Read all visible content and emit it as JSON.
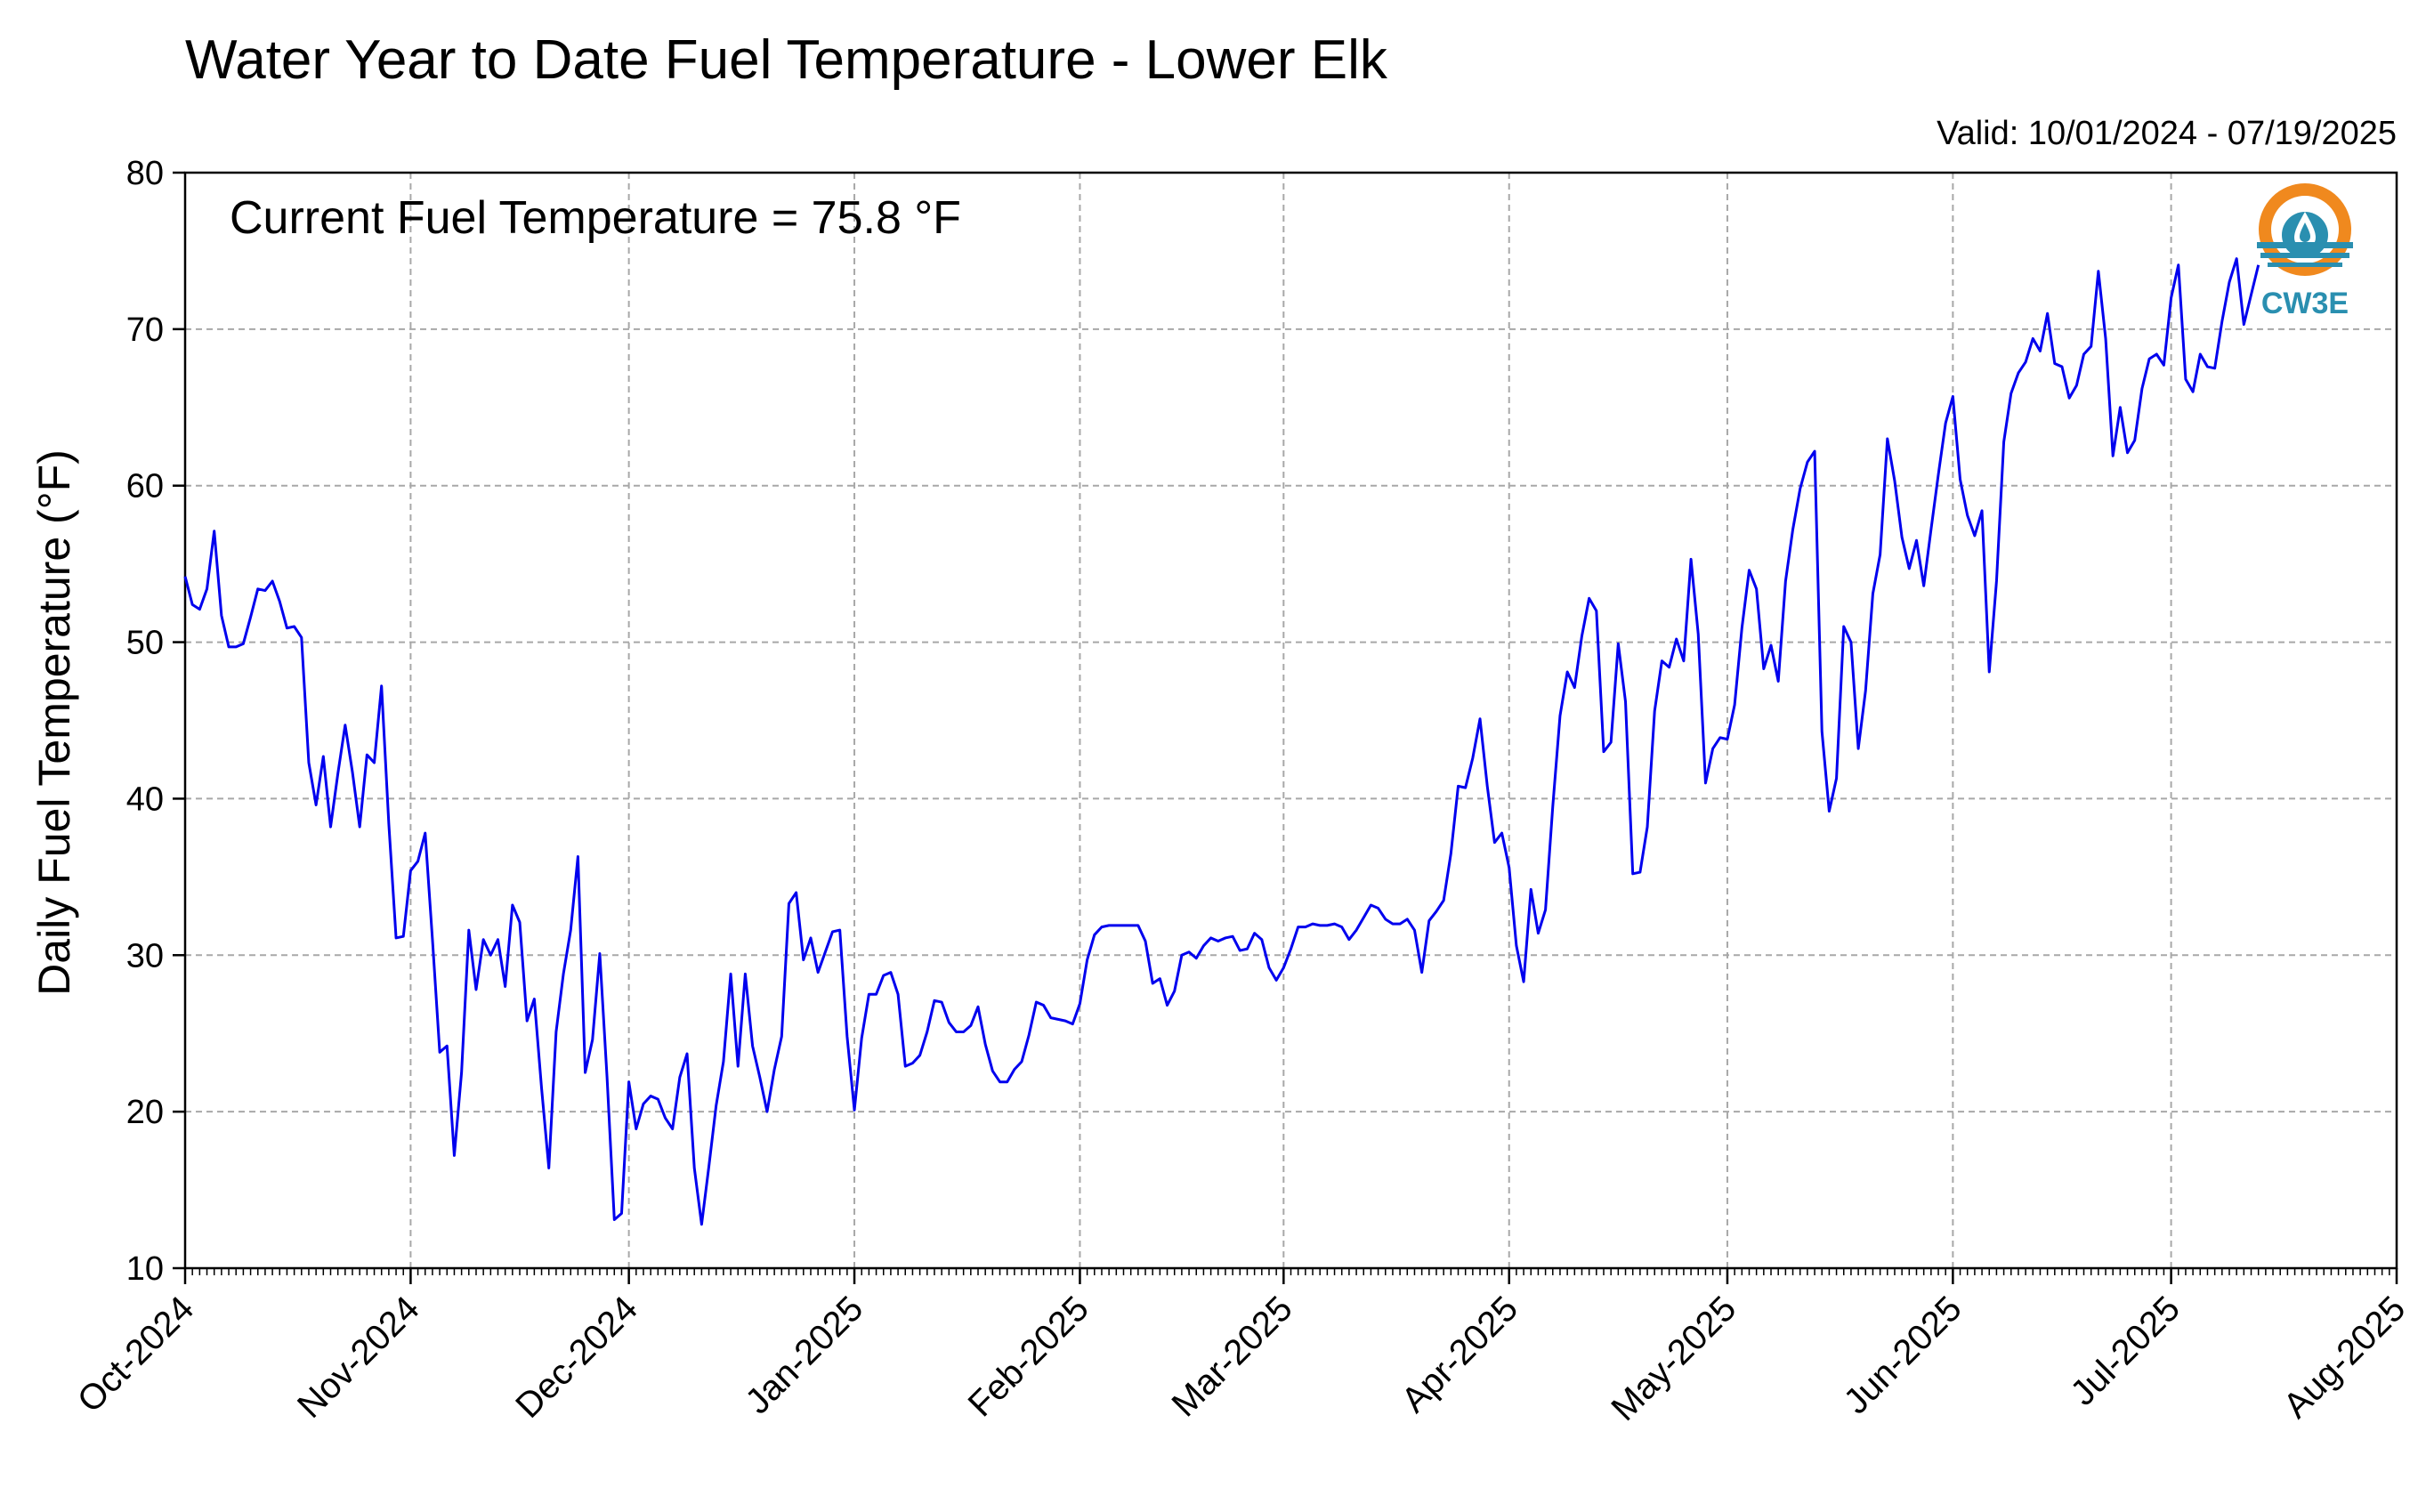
{
  "chart_data": {
    "type": "line",
    "title": "Water Year to Date Fuel Temperature - Lower Elk",
    "valid_text": "Valid: 10/01/2024 - 07/19/2025",
    "current_text": "Current Fuel Temperature = 75.8 °F",
    "ylabel": "Daily Fuel Temperature (°F)",
    "xlabel": "",
    "ylim": [
      10,
      80
    ],
    "yticks": [
      10,
      20,
      30,
      40,
      50,
      60,
      70,
      80
    ],
    "xlim": [
      "2024-10-01",
      "2025-08-01"
    ],
    "xtick_labels": [
      "Oct-2024",
      "Nov-2024",
      "Dec-2024",
      "Jan-2025",
      "Feb-2025",
      "Mar-2025",
      "Apr-2025",
      "May-2025",
      "Jun-2025",
      "Jul-2025",
      "Aug-2025"
    ],
    "grid": true,
    "line_color": "#0000ee",
    "logo_text": "CW3E",
    "series": [
      {
        "start_date": "2024-10-01",
        "frequency": "daily",
        "values": [
          54.2,
          52.4,
          52.1,
          53.4,
          57.1,
          51.7,
          49.7,
          49.7,
          49.9,
          51.6,
          53.4,
          53.3,
          53.9,
          52.6,
          50.9,
          51.0,
          50.3,
          42.3,
          39.6,
          42.7,
          38.2,
          41.6,
          44.7,
          41.7,
          38.2,
          42.8,
          42.3,
          47.2,
          38.4,
          31.1,
          31.2,
          35.4,
          36.0,
          37.8,
          31.0,
          23.8,
          24.2,
          17.2,
          22.5,
          31.6,
          27.8,
          31.0,
          30.0,
          31.0,
          28.0,
          33.2,
          32.1,
          25.8,
          27.2,
          21.5,
          16.4,
          25.1,
          28.8,
          31.6,
          36.3,
          22.5,
          24.6,
          30.1,
          22.2,
          13.1,
          13.5,
          21.9,
          18.9,
          20.5,
          21.0,
          20.8,
          19.6,
          18.9,
          22.2,
          23.7,
          16.4,
          12.8,
          16.5,
          20.4,
          23.2,
          28.8,
          22.9,
          28.8,
          24.2,
          22.2,
          20.0,
          22.7,
          24.8,
          33.3,
          34.0,
          29.7,
          31.1,
          28.9,
          30.2,
          31.5,
          31.6,
          24.8,
          20.1,
          24.7,
          27.5,
          27.5,
          28.7,
          28.9,
          27.5,
          22.9,
          23.1,
          23.6,
          25.1,
          27.1,
          27.0,
          25.7,
          25.1,
          25.1,
          25.5,
          26.7,
          24.3,
          22.6,
          21.9,
          21.9,
          22.7,
          23.2,
          24.9,
          27.0,
          26.8,
          26.0,
          25.9,
          25.8,
          25.6,
          26.9,
          29.7,
          31.3,
          31.8,
          31.9,
          31.9,
          31.9,
          31.9,
          31.9,
          30.9,
          28.2,
          28.5,
          26.8,
          27.7,
          30.0,
          30.2,
          29.8,
          30.6,
          31.1,
          30.9,
          31.1,
          31.2,
          30.3,
          30.4,
          31.4,
          31.0,
          29.2,
          28.4,
          29.2,
          30.4,
          31.8,
          31.8,
          32.0,
          31.9,
          31.9,
          32.0,
          31.8,
          31.0,
          31.6,
          32.4,
          33.2,
          33.0,
          32.3,
          32.0,
          32.0,
          32.3,
          31.6,
          28.9,
          32.2,
          32.8,
          33.5,
          36.5,
          40.8,
          40.7,
          42.6,
          45.1,
          40.8,
          37.2,
          37.8,
          35.6,
          30.6,
          28.3,
          34.2,
          31.4,
          32.9,
          39.5,
          45.3,
          48.1,
          47.1,
          50.4,
          52.8,
          52.0,
          43.0,
          43.6,
          49.9,
          46.2,
          35.2,
          35.3,
          38.2,
          45.6,
          48.8,
          48.4,
          50.2,
          48.8,
          55.3,
          50.5,
          41.0,
          43.2,
          43.9,
          43.8,
          46.0,
          50.9,
          54.6,
          53.4,
          48.3,
          49.8,
          47.5,
          53.9,
          57.2,
          59.8,
          61.5,
          62.2,
          44.3,
          39.2,
          41.3,
          51.0,
          50.0,
          43.2,
          46.9,
          53.1,
          55.6,
          63.0,
          60.3,
          56.7,
          54.7,
          56.5,
          53.6,
          57.2,
          60.7,
          64.0,
          65.7,
          60.4,
          58.1,
          56.8,
          58.4,
          48.1,
          53.9,
          62.8,
          65.9,
          67.2,
          67.9,
          69.4,
          68.6,
          71.0,
          67.8,
          67.6,
          65.6,
          66.4,
          68.4,
          68.9,
          73.7,
          69.4,
          61.9,
          65.0,
          62.1,
          62.9,
          66.2,
          68.1,
          68.4,
          67.7,
          72.0,
          74.1,
          66.8,
          66.0,
          68.4,
          67.6,
          67.5,
          70.5,
          73.0,
          74.5,
          70.3,
          72.2,
          74.1
        ]
      }
    ]
  }
}
